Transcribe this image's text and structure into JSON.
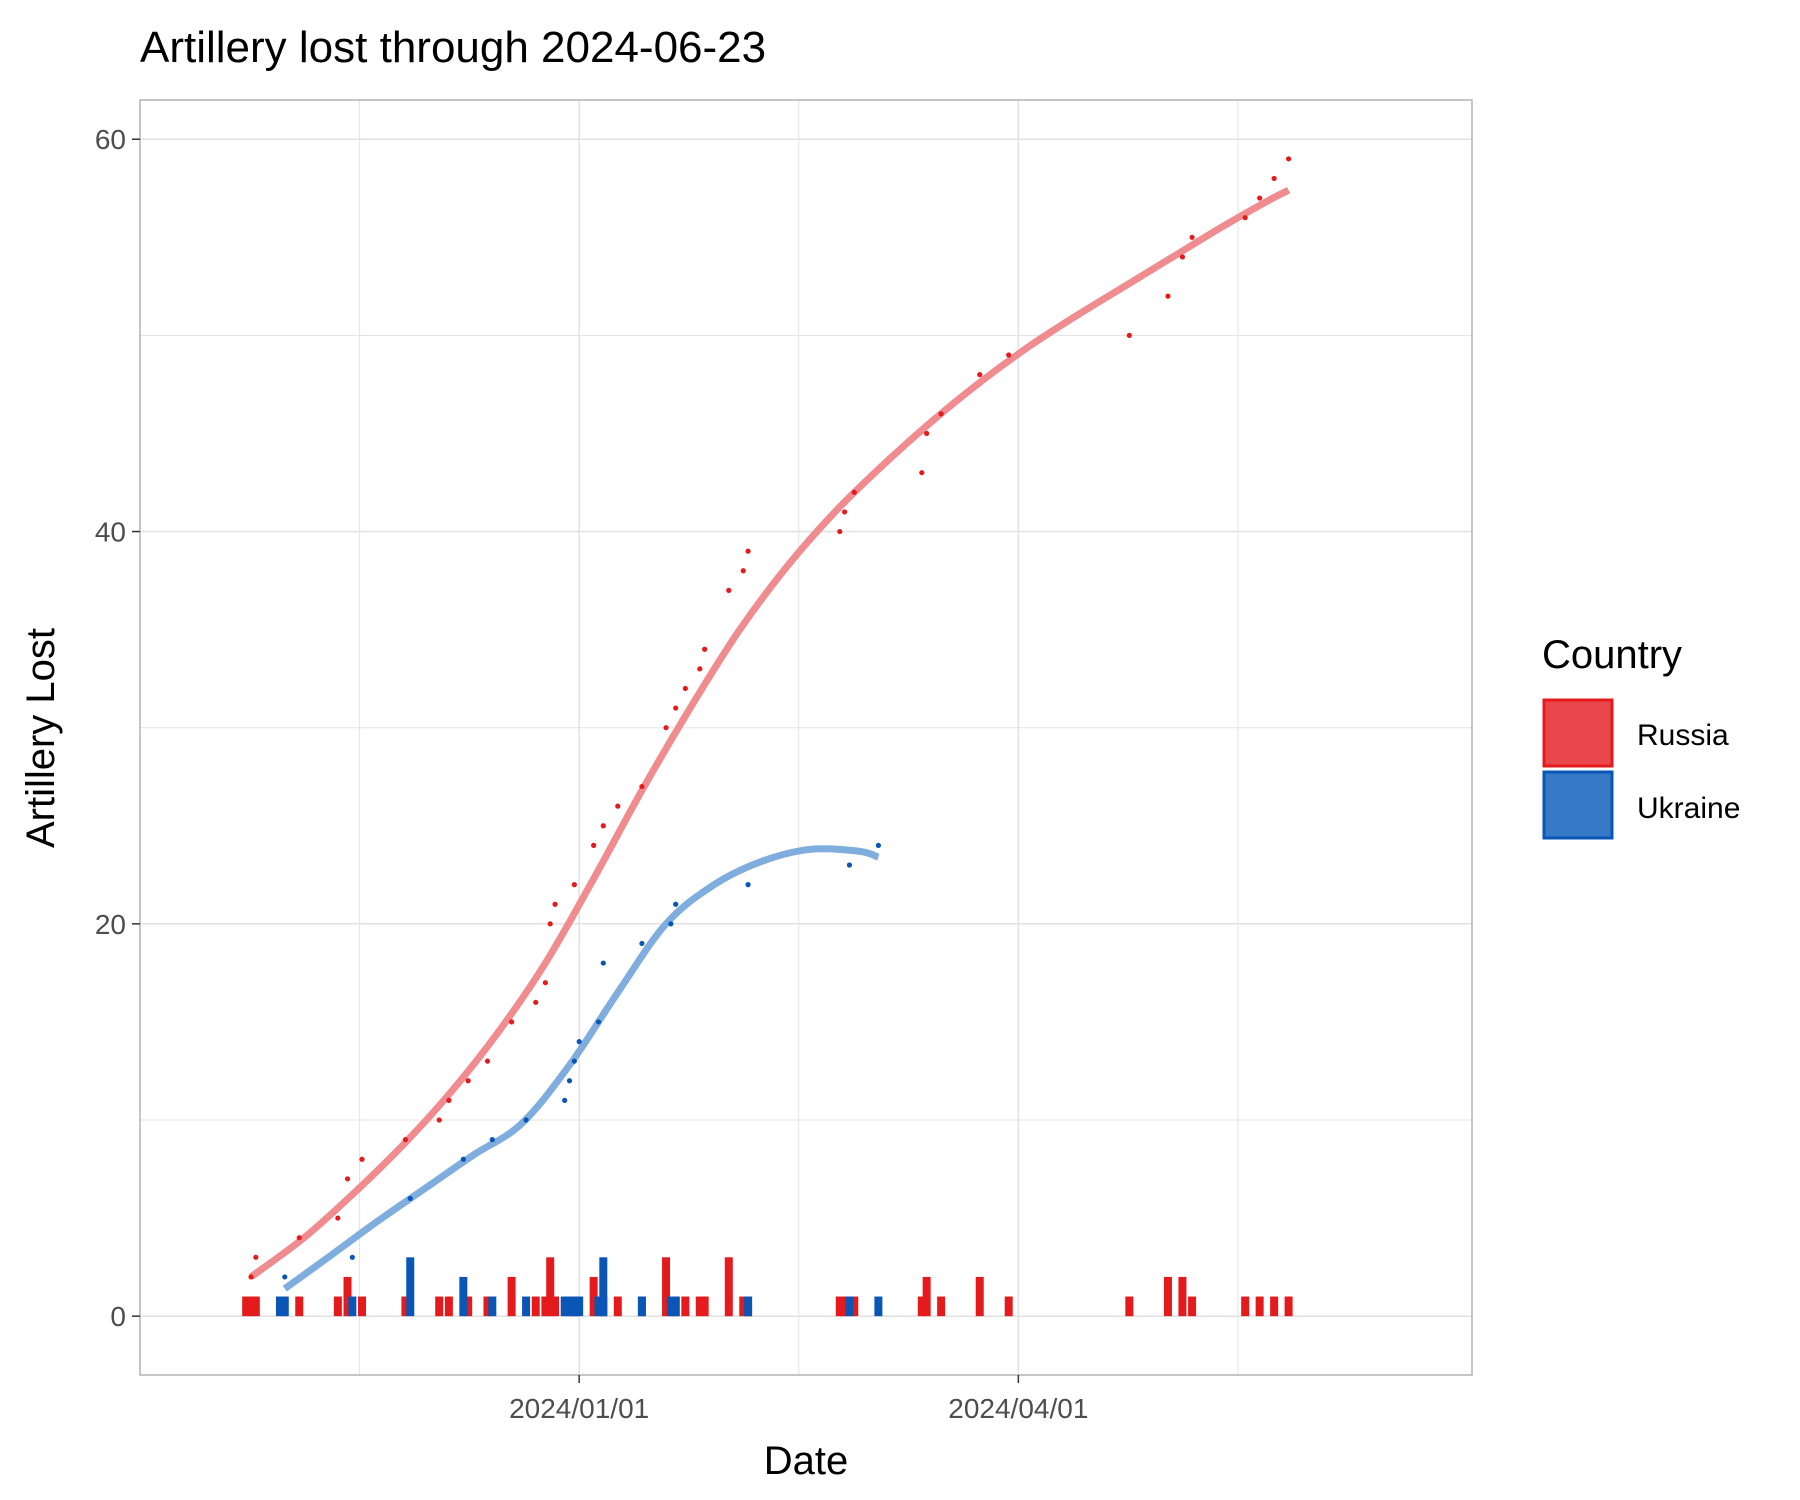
{
  "chart_data": {
    "type": "line",
    "title": "Artillery lost through 2024-06-23",
    "xlabel": "Date",
    "ylabel": "Artillery Lost",
    "x_domain": [
      "2023-10-02",
      "2024-07-04"
    ],
    "ylim": [
      -3,
      62
    ],
    "y_ticks": [
      0,
      20,
      40,
      60
    ],
    "x_ticks": [
      {
        "date": "2024-01-01",
        "label": "2024/01/01"
      },
      {
        "date": "2024-04-01",
        "label": "2024/04/01"
      }
    ],
    "legend": {
      "title": "Country",
      "position": "right",
      "entries": [
        {
          "name": "Russia",
          "fill": "#e8474c",
          "stroke": "#e41a1c"
        },
        {
          "name": "Ukraine",
          "fill": "#3679c6",
          "stroke": "#0a56b6"
        }
      ]
    },
    "colors": {
      "Russia_point": "#e41a1c",
      "Ukraine_point": "#0a56b6",
      "Russia_smooth": "#f08b8f",
      "Ukraine_smooth": "#7fadde",
      "grid": "#e3e3e3",
      "panel_border": "#b3b3b3"
    },
    "series": [
      {
        "name": "Russia",
        "cumulative": [
          [
            "2023-10-25",
            2
          ],
          [
            "2023-10-26",
            3
          ],
          [
            "2023-11-04",
            4
          ],
          [
            "2023-11-12",
            5
          ],
          [
            "2023-11-14",
            7
          ],
          [
            "2023-11-17",
            8
          ],
          [
            "2023-11-26",
            9
          ],
          [
            "2023-12-03",
            10
          ],
          [
            "2023-12-05",
            11
          ],
          [
            "2023-12-09",
            12
          ],
          [
            "2023-12-13",
            13
          ],
          [
            "2023-12-18",
            15
          ],
          [
            "2023-12-23",
            16
          ],
          [
            "2023-12-25",
            17
          ],
          [
            "2023-12-26",
            20
          ],
          [
            "2023-12-27",
            21
          ],
          [
            "2023-12-31",
            22
          ],
          [
            "2024-01-04",
            24
          ],
          [
            "2024-01-06",
            25
          ],
          [
            "2024-01-09",
            26
          ],
          [
            "2024-01-14",
            27
          ],
          [
            "2024-01-19",
            30
          ],
          [
            "2024-01-21",
            31
          ],
          [
            "2024-01-23",
            32
          ],
          [
            "2024-01-26",
            33
          ],
          [
            "2024-01-27",
            34
          ],
          [
            "2024-02-01",
            37
          ],
          [
            "2024-02-04",
            38
          ],
          [
            "2024-02-05",
            39
          ],
          [
            "2024-02-24",
            40
          ],
          [
            "2024-02-25",
            41
          ],
          [
            "2024-02-27",
            42
          ],
          [
            "2024-03-12",
            43
          ],
          [
            "2024-03-13",
            45
          ],
          [
            "2024-03-16",
            46
          ],
          [
            "2024-03-24",
            48
          ],
          [
            "2024-03-30",
            49
          ],
          [
            "2024-04-24",
            50
          ],
          [
            "2024-05-02",
            52
          ],
          [
            "2024-05-05",
            54
          ],
          [
            "2024-05-07",
            55
          ],
          [
            "2024-05-18",
            56
          ],
          [
            "2024-05-21",
            57
          ],
          [
            "2024-05-24",
            58
          ],
          [
            "2024-05-27",
            59
          ]
        ],
        "daily": [
          [
            "2023-10-24",
            1
          ],
          [
            "2023-10-25",
            1
          ],
          [
            "2023-10-26",
            1
          ],
          [
            "2023-11-04",
            1
          ],
          [
            "2023-11-12",
            1
          ],
          [
            "2023-11-14",
            2
          ],
          [
            "2023-11-17",
            1
          ],
          [
            "2023-11-26",
            1
          ],
          [
            "2023-12-03",
            1
          ],
          [
            "2023-12-05",
            1
          ],
          [
            "2023-12-09",
            1
          ],
          [
            "2023-12-13",
            1
          ],
          [
            "2023-12-18",
            2
          ],
          [
            "2023-12-23",
            1
          ],
          [
            "2023-12-25",
            1
          ],
          [
            "2023-12-26",
            3
          ],
          [
            "2023-12-27",
            1
          ],
          [
            "2023-12-31",
            1
          ],
          [
            "2024-01-04",
            2
          ],
          [
            "2024-01-06",
            1
          ],
          [
            "2024-01-09",
            1
          ],
          [
            "2024-01-14",
            1
          ],
          [
            "2024-01-19",
            3
          ],
          [
            "2024-01-21",
            1
          ],
          [
            "2024-01-23",
            1
          ],
          [
            "2024-01-26",
            1
          ],
          [
            "2024-01-27",
            1
          ],
          [
            "2024-02-01",
            3
          ],
          [
            "2024-02-04",
            1
          ],
          [
            "2024-02-05",
            1
          ],
          [
            "2024-02-24",
            1
          ],
          [
            "2024-02-25",
            1
          ],
          [
            "2024-02-27",
            1
          ],
          [
            "2024-03-12",
            1
          ],
          [
            "2024-03-13",
            2
          ],
          [
            "2024-03-16",
            1
          ],
          [
            "2024-03-24",
            2
          ],
          [
            "2024-03-30",
            1
          ],
          [
            "2024-04-24",
            1
          ],
          [
            "2024-05-02",
            2
          ],
          [
            "2024-05-05",
            2
          ],
          [
            "2024-05-07",
            1
          ],
          [
            "2024-05-18",
            1
          ],
          [
            "2024-05-21",
            1
          ],
          [
            "2024-05-24",
            1
          ],
          [
            "2024-05-27",
            1
          ]
        ],
        "smooth": [
          [
            "2023-10-25",
            2.0
          ],
          [
            "2023-11-05",
            4.0
          ],
          [
            "2023-11-15",
            6.2
          ],
          [
            "2023-11-25",
            8.6
          ],
          [
            "2023-12-05",
            11.3
          ],
          [
            "2023-12-15",
            14.4
          ],
          [
            "2023-12-25",
            18.0
          ],
          [
            "2024-01-04",
            22.3
          ],
          [
            "2024-01-14",
            26.8
          ],
          [
            "2024-01-24",
            31.0
          ],
          [
            "2024-02-03",
            34.9
          ],
          [
            "2024-02-13",
            38.2
          ],
          [
            "2024-02-23",
            41.0
          ],
          [
            "2024-03-04",
            43.4
          ],
          [
            "2024-03-14",
            45.6
          ],
          [
            "2024-03-24",
            47.6
          ],
          [
            "2024-04-03",
            49.4
          ],
          [
            "2024-04-13",
            51.0
          ],
          [
            "2024-04-23",
            52.5
          ],
          [
            "2024-05-03",
            54.0
          ],
          [
            "2024-05-13",
            55.5
          ],
          [
            "2024-05-23",
            56.9
          ],
          [
            "2024-05-27",
            57.4
          ]
        ]
      },
      {
        "name": "Ukraine",
        "cumulative": [
          [
            "2023-11-01",
            2
          ],
          [
            "2023-11-15",
            3
          ],
          [
            "2023-11-27",
            6
          ],
          [
            "2023-12-08",
            8
          ],
          [
            "2023-12-14",
            9
          ],
          [
            "2023-12-21",
            10
          ],
          [
            "2023-12-29",
            11
          ],
          [
            "2023-12-30",
            12
          ],
          [
            "2023-12-31",
            13
          ],
          [
            "2024-01-01",
            14
          ],
          [
            "2024-01-05",
            15
          ],
          [
            "2024-01-06",
            18
          ],
          [
            "2024-01-14",
            19
          ],
          [
            "2024-01-20",
            20
          ],
          [
            "2024-01-21",
            21
          ],
          [
            "2024-02-05",
            22
          ],
          [
            "2024-02-26",
            23
          ],
          [
            "2024-03-03",
            24
          ]
        ],
        "daily": [
          [
            "2023-10-31",
            1
          ],
          [
            "2023-11-01",
            1
          ],
          [
            "2023-11-15",
            1
          ],
          [
            "2023-11-27",
            3
          ],
          [
            "2023-12-08",
            2
          ],
          [
            "2023-12-14",
            1
          ],
          [
            "2023-12-21",
            1
          ],
          [
            "2023-12-29",
            1
          ],
          [
            "2023-12-30",
            1
          ],
          [
            "2023-12-31",
            1
          ],
          [
            "2024-01-01",
            1
          ],
          [
            "2024-01-05",
            1
          ],
          [
            "2024-01-06",
            3
          ],
          [
            "2024-01-14",
            1
          ],
          [
            "2024-01-20",
            1
          ],
          [
            "2024-01-21",
            1
          ],
          [
            "2024-02-05",
            1
          ],
          [
            "2024-02-26",
            1
          ],
          [
            "2024-03-03",
            1
          ]
        ],
        "smooth": [
          [
            "2023-11-01",
            1.4
          ],
          [
            "2023-11-10",
            3.0
          ],
          [
            "2023-11-20",
            4.8
          ],
          [
            "2023-11-30",
            6.5
          ],
          [
            "2023-12-10",
            8.2
          ],
          [
            "2023-12-20",
            9.8
          ],
          [
            "2023-12-30",
            12.8
          ],
          [
            "2024-01-09",
            16.5
          ],
          [
            "2024-01-19",
            20.0
          ],
          [
            "2024-01-29",
            22.0
          ],
          [
            "2024-02-08",
            23.2
          ],
          [
            "2024-02-18",
            23.8
          ],
          [
            "2024-02-28",
            23.7
          ],
          [
            "2024-03-03",
            23.4
          ]
        ]
      }
    ]
  }
}
